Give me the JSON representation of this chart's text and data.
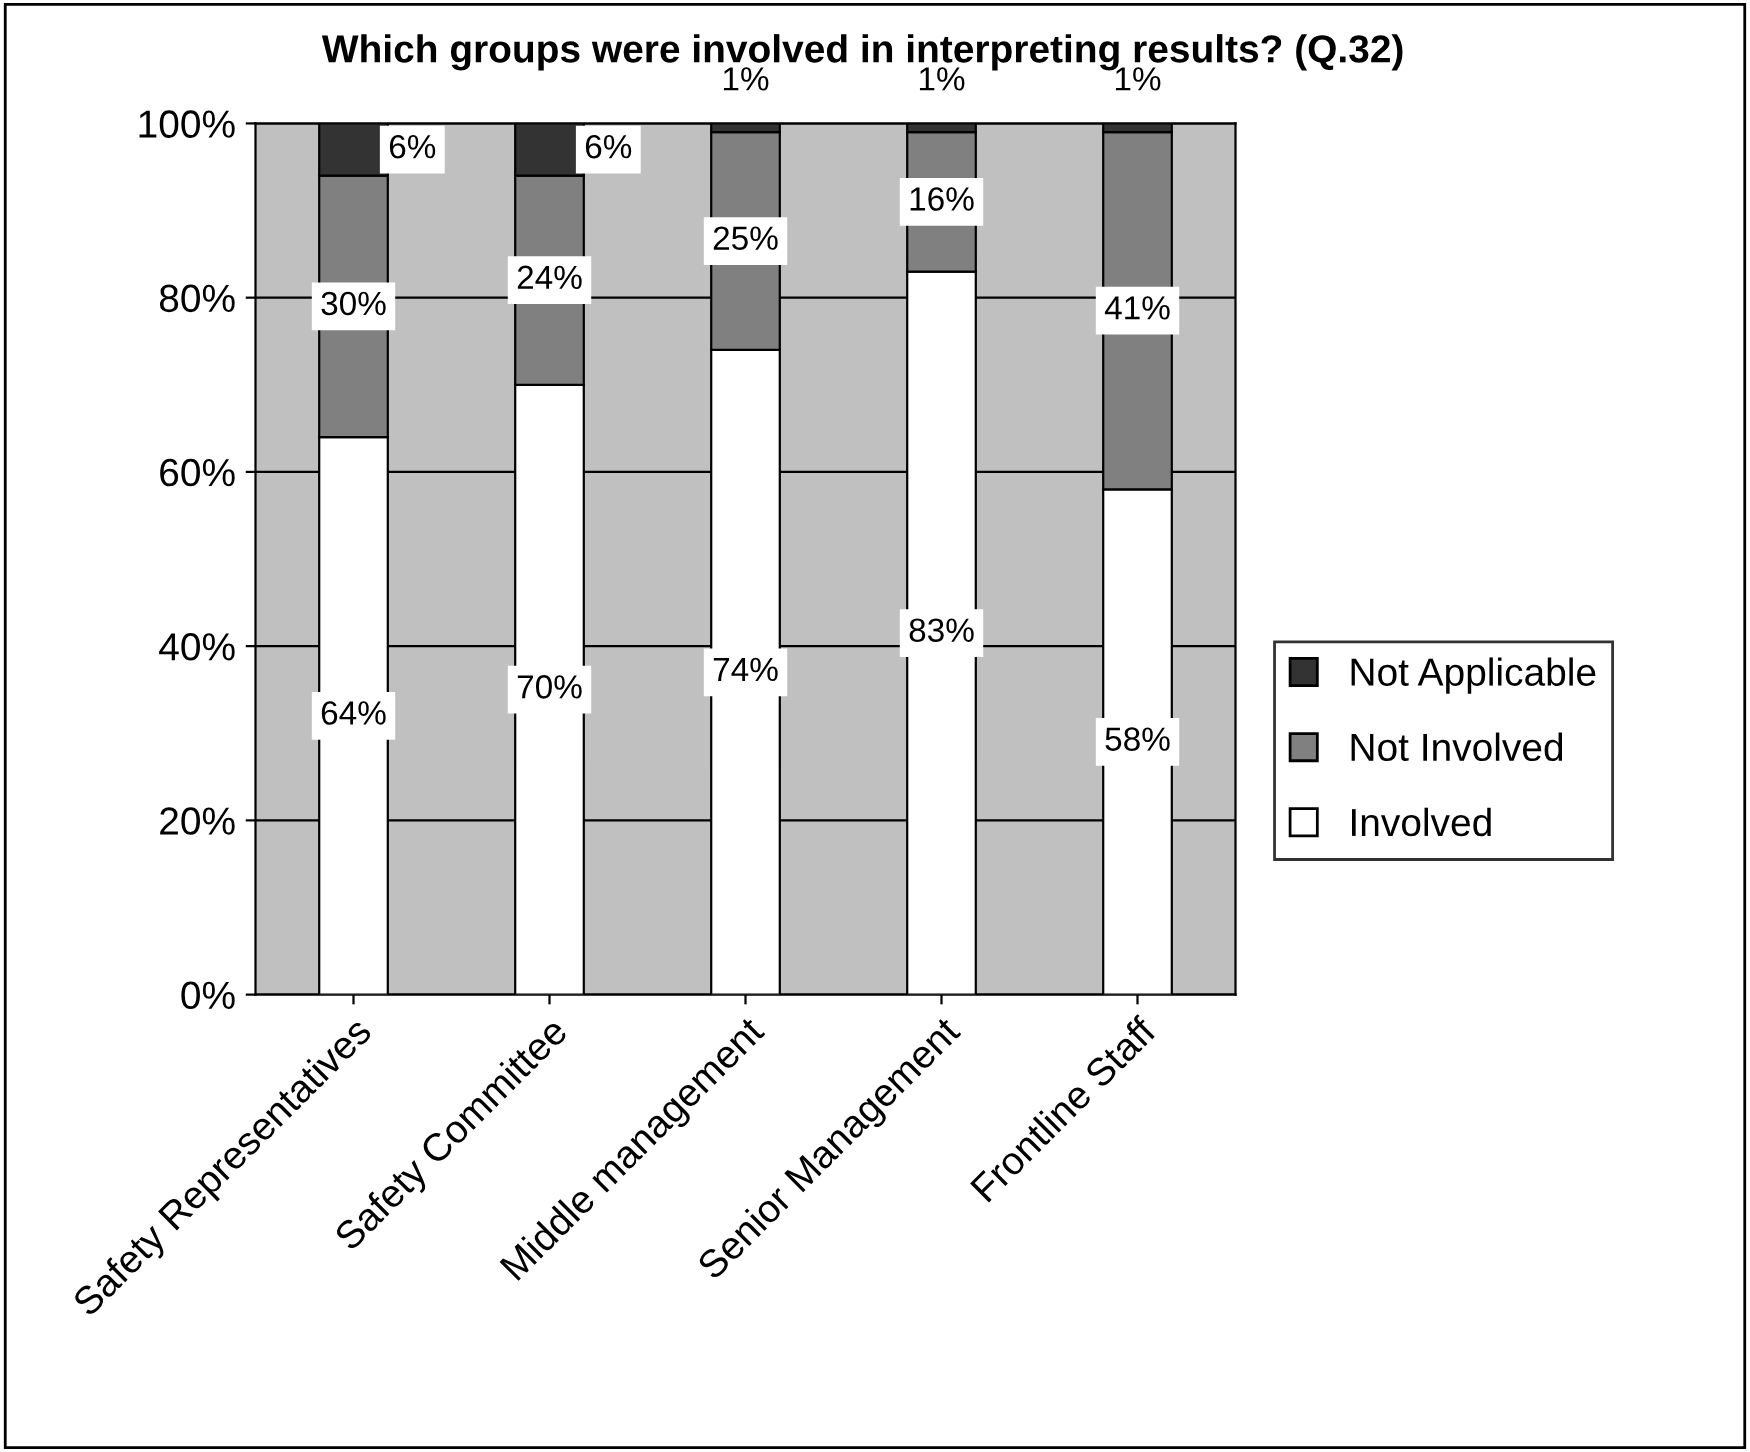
{
  "chart_data": {
    "type": "bar",
    "title": "Which groups were involved in interpreting results? (Q.32)",
    "categories": [
      "Safety Representatives",
      "Safety Committee",
      "Middle management",
      "Senior Management",
      "Frontline Staff"
    ],
    "stacked": true,
    "series": [
      {
        "name": "Involved",
        "color": "#ffffff",
        "values": [
          64,
          70,
          74,
          83,
          58
        ],
        "value_labels": [
          "64%",
          "70%",
          "74%",
          "83%",
          "58%"
        ]
      },
      {
        "name": "Not Involved",
        "color": "#808080",
        "values": [
          30,
          24,
          25,
          16,
          41
        ],
        "value_labels": [
          "30%",
          "24%",
          "25%",
          "16%",
          "41%"
        ]
      },
      {
        "name": "Not Applicable",
        "color": "#333333",
        "values": [
          6,
          6,
          1,
          1,
          1
        ],
        "value_labels": [
          "6%",
          "6%",
          "1%",
          "1%",
          "1%"
        ]
      }
    ],
    "ylim": [
      0,
      100
    ],
    "yticks": [
      {
        "value": 0,
        "label": "0%"
      },
      {
        "value": 20,
        "label": "20%"
      },
      {
        "value": 40,
        "label": "40%"
      },
      {
        "value": 60,
        "label": "60%"
      },
      {
        "value": 80,
        "label": "80%"
      },
      {
        "value": 100,
        "label": "100%"
      }
    ],
    "grid": "y",
    "legend": "right"
  }
}
